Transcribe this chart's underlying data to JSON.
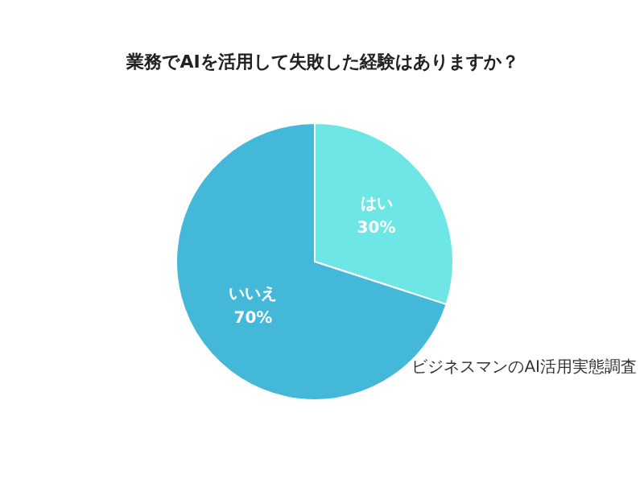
{
  "chart_data": {
    "type": "pie",
    "title": "業務でAIを活用して失敗した経験はありますか？",
    "categories": [
      "はい",
      "いいえ"
    ],
    "values": [
      30,
      70
    ],
    "value_labels": [
      "30%",
      "70%"
    ],
    "colors": [
      "#6ee6e6",
      "#44b8d8"
    ],
    "annotations": [
      "ビジネスマンのAI活用実態調査"
    ]
  }
}
